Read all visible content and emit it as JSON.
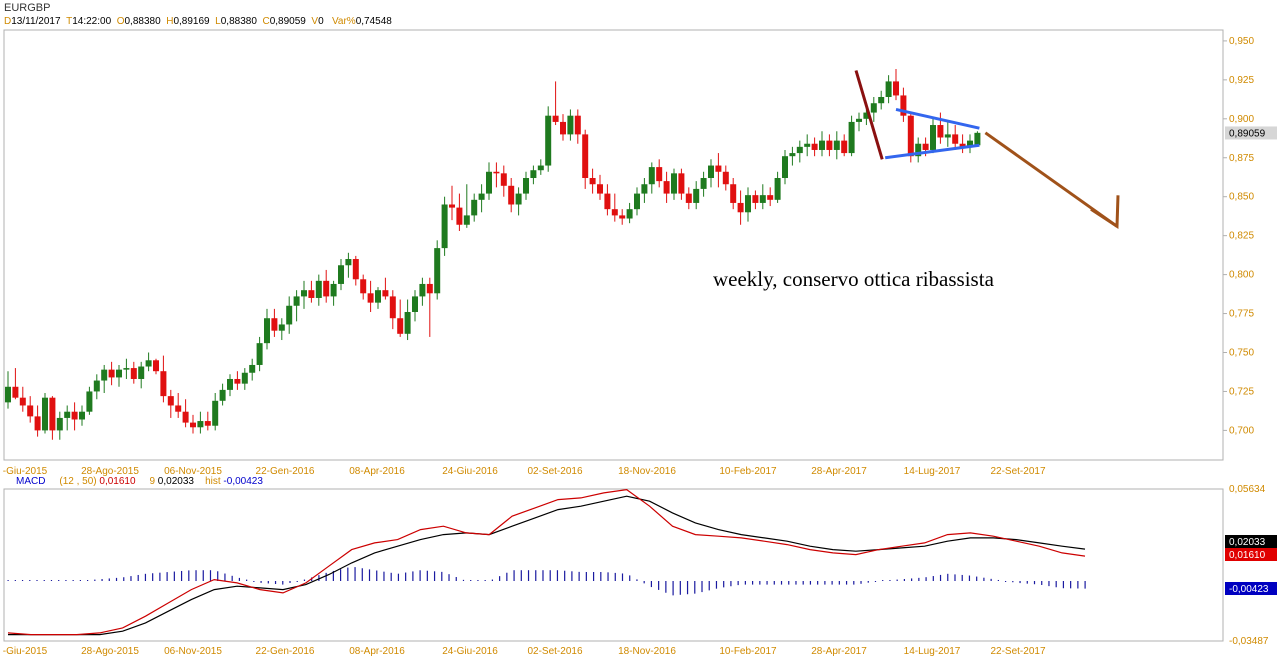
{
  "header": {
    "symbol": "EURGBP",
    "date_label": "D",
    "date": "13/11/2017",
    "time_label": "T",
    "time": "14:22:00",
    "open_label": "O",
    "open": "0,88380",
    "high_label": "H",
    "high": "0,89169",
    "low_label": "L",
    "low": "0,88380",
    "close_label": "C",
    "close": "0,89059",
    "volume_label": "V",
    "volume": "0",
    "varpct_label": "Var%",
    "varpct": "0,74548"
  },
  "macd_header": {
    "name": "MACD",
    "params": "(12 , 50)",
    "macd_value": "0,01610",
    "signal_label": "9",
    "signal_value": "0,02033",
    "hist_label": "hist",
    "hist_value": "-0,00423"
  },
  "annotation": "weekly, conservo ottica ribassista",
  "colors": {
    "bull": "#1f7a1f",
    "bear": "#e01010",
    "axis_text": "#d08a00",
    "macd_line": "#cc0000",
    "signal_line": "#000000",
    "histogram": "#1a1aa0",
    "triangle": "#3366ee",
    "arrow_dark": "#8a1010",
    "arrow_brown": "#a0521a"
  },
  "chart_data": [
    {
      "type": "candlestick",
      "title": "EURGBP",
      "y_ticks": [
        "0,950",
        "0,925",
        "0,900",
        "0,875",
        "0,850",
        "0,825",
        "0,800",
        "0,775",
        "0,750",
        "0,725",
        "0,700"
      ],
      "ylim": [
        0.681,
        0.957
      ],
      "last_price_label": "0,89059",
      "x_tick_labels": [
        "-Giu-2015",
        "28-Ago-2015",
        "06-Nov-2015",
        "22-Gen-2016",
        "08-Apr-2016",
        "24-Giu-2016",
        "02-Set-2016",
        "18-Nov-2016",
        "10-Feb-2017",
        "28-Apr-2017",
        "14-Lug-2017",
        "22-Set-2017"
      ],
      "ohlc": [
        [
          0.718,
          0.738,
          0.714,
          0.728
        ],
        [
          0.728,
          0.74,
          0.72,
          0.721
        ],
        [
          0.721,
          0.728,
          0.712,
          0.716
        ],
        [
          0.716,
          0.722,
          0.705,
          0.709
        ],
        [
          0.709,
          0.716,
          0.696,
          0.7
        ],
        [
          0.7,
          0.724,
          0.698,
          0.721
        ],
        [
          0.721,
          0.722,
          0.694,
          0.7
        ],
        [
          0.7,
          0.712,
          0.694,
          0.708
        ],
        [
          0.708,
          0.716,
          0.7,
          0.712
        ],
        [
          0.712,
          0.718,
          0.7,
          0.707
        ],
        [
          0.707,
          0.716,
          0.703,
          0.712
        ],
        [
          0.712,
          0.728,
          0.71,
          0.725
        ],
        [
          0.725,
          0.736,
          0.72,
          0.732
        ],
        [
          0.732,
          0.742,
          0.724,
          0.739
        ],
        [
          0.739,
          0.744,
          0.729,
          0.734
        ],
        [
          0.734,
          0.742,
          0.728,
          0.739
        ],
        [
          0.739,
          0.746,
          0.733,
          0.74
        ],
        [
          0.74,
          0.744,
          0.73,
          0.733
        ],
        [
          0.733,
          0.744,
          0.727,
          0.741
        ],
        [
          0.741,
          0.75,
          0.738,
          0.745
        ],
        [
          0.745,
          0.746,
          0.736,
          0.738
        ],
        [
          0.738,
          0.748,
          0.718,
          0.722
        ],
        [
          0.722,
          0.726,
          0.708,
          0.716
        ],
        [
          0.716,
          0.724,
          0.708,
          0.712
        ],
        [
          0.712,
          0.72,
          0.702,
          0.705
        ],
        [
          0.705,
          0.71,
          0.698,
          0.702
        ],
        [
          0.702,
          0.712,
          0.698,
          0.706
        ],
        [
          0.706,
          0.712,
          0.7,
          0.703
        ],
        [
          0.703,
          0.724,
          0.7,
          0.719
        ],
        [
          0.719,
          0.73,
          0.716,
          0.726
        ],
        [
          0.726,
          0.736,
          0.722,
          0.733
        ],
        [
          0.733,
          0.738,
          0.726,
          0.73
        ],
        [
          0.73,
          0.74,
          0.726,
          0.737
        ],
        [
          0.737,
          0.746,
          0.732,
          0.742
        ],
        [
          0.742,
          0.76,
          0.738,
          0.756
        ],
        [
          0.756,
          0.778,
          0.752,
          0.772
        ],
        [
          0.772,
          0.778,
          0.76,
          0.764
        ],
        [
          0.764,
          0.772,
          0.758,
          0.768
        ],
        [
          0.768,
          0.786,
          0.762,
          0.78
        ],
        [
          0.78,
          0.79,
          0.77,
          0.786
        ],
        [
          0.786,
          0.796,
          0.778,
          0.79
        ],
        [
          0.79,
          0.796,
          0.782,
          0.785
        ],
        [
          0.785,
          0.8,
          0.78,
          0.796
        ],
        [
          0.796,
          0.803,
          0.782,
          0.786
        ],
        [
          0.786,
          0.796,
          0.78,
          0.794
        ],
        [
          0.794,
          0.81,
          0.79,
          0.806
        ],
        [
          0.806,
          0.814,
          0.798,
          0.81
        ],
        [
          0.81,
          0.812,
          0.793,
          0.797
        ],
        [
          0.797,
          0.8,
          0.784,
          0.788
        ],
        [
          0.788,
          0.796,
          0.776,
          0.782
        ],
        [
          0.782,
          0.792,
          0.778,
          0.79
        ],
        [
          0.79,
          0.798,
          0.784,
          0.786
        ],
        [
          0.786,
          0.79,
          0.765,
          0.772
        ],
        [
          0.772,
          0.784,
          0.76,
          0.762
        ],
        [
          0.762,
          0.784,
          0.758,
          0.776
        ],
        [
          0.776,
          0.79,
          0.77,
          0.786
        ],
        [
          0.786,
          0.798,
          0.78,
          0.794
        ],
        [
          0.794,
          0.798,
          0.76,
          0.788
        ],
        [
          0.788,
          0.822,
          0.784,
          0.817
        ],
        [
          0.817,
          0.85,
          0.812,
          0.845
        ],
        [
          0.845,
          0.857,
          0.835,
          0.843
        ],
        [
          0.843,
          0.852,
          0.828,
          0.832
        ],
        [
          0.832,
          0.858,
          0.83,
          0.838
        ],
        [
          0.838,
          0.852,
          0.834,
          0.848
        ],
        [
          0.848,
          0.858,
          0.84,
          0.852
        ],
        [
          0.852,
          0.872,
          0.848,
          0.866
        ],
        [
          0.866,
          0.872,
          0.856,
          0.865
        ],
        [
          0.865,
          0.87,
          0.85,
          0.857
        ],
        [
          0.857,
          0.862,
          0.84,
          0.845
        ],
        [
          0.845,
          0.856,
          0.838,
          0.852
        ],
        [
          0.852,
          0.866,
          0.848,
          0.862
        ],
        [
          0.862,
          0.87,
          0.858,
          0.867
        ],
        [
          0.867,
          0.874,
          0.864,
          0.87
        ],
        [
          0.87,
          0.908,
          0.866,
          0.902
        ],
        [
          0.902,
          0.924,
          0.896,
          0.898
        ],
        [
          0.898,
          0.903,
          0.886,
          0.89
        ],
        [
          0.89,
          0.906,
          0.886,
          0.902
        ],
        [
          0.902,
          0.906,
          0.884,
          0.89
        ],
        [
          0.89,
          0.893,
          0.855,
          0.862
        ],
        [
          0.862,
          0.868,
          0.852,
          0.858
        ],
        [
          0.858,
          0.864,
          0.848,
          0.852
        ],
        [
          0.852,
          0.858,
          0.838,
          0.842
        ],
        [
          0.842,
          0.852,
          0.834,
          0.838
        ],
        [
          0.838,
          0.842,
          0.832,
          0.836
        ],
        [
          0.836,
          0.846,
          0.833,
          0.842
        ],
        [
          0.842,
          0.856,
          0.838,
          0.852
        ],
        [
          0.852,
          0.862,
          0.846,
          0.858
        ],
        [
          0.858,
          0.872,
          0.852,
          0.869
        ],
        [
          0.869,
          0.874,
          0.856,
          0.86
        ],
        [
          0.86,
          0.866,
          0.846,
          0.852
        ],
        [
          0.852,
          0.868,
          0.848,
          0.865
        ],
        [
          0.865,
          0.868,
          0.848,
          0.852
        ],
        [
          0.852,
          0.856,
          0.842,
          0.846
        ],
        [
          0.846,
          0.86,
          0.842,
          0.855
        ],
        [
          0.855,
          0.866,
          0.85,
          0.862
        ],
        [
          0.862,
          0.874,
          0.856,
          0.87
        ],
        [
          0.87,
          0.878,
          0.856,
          0.866
        ],
        [
          0.866,
          0.87,
          0.854,
          0.858
        ],
        [
          0.858,
          0.862,
          0.842,
          0.846
        ],
        [
          0.846,
          0.854,
          0.832,
          0.84
        ],
        [
          0.84,
          0.856,
          0.834,
          0.851
        ],
        [
          0.851,
          0.854,
          0.842,
          0.846
        ],
        [
          0.846,
          0.858,
          0.842,
          0.851
        ],
        [
          0.851,
          0.856,
          0.844,
          0.848
        ],
        [
          0.848,
          0.866,
          0.846,
          0.862
        ],
        [
          0.862,
          0.88,
          0.858,
          0.876
        ],
        [
          0.876,
          0.882,
          0.87,
          0.878
        ],
        [
          0.878,
          0.886,
          0.872,
          0.882
        ],
        [
          0.882,
          0.89,
          0.876,
          0.884
        ],
        [
          0.884,
          0.888,
          0.876,
          0.88
        ],
        [
          0.88,
          0.892,
          0.876,
          0.886
        ],
        [
          0.886,
          0.89,
          0.876,
          0.88
        ],
        [
          0.88,
          0.892,
          0.874,
          0.886
        ],
        [
          0.886,
          0.89,
          0.876,
          0.878
        ],
        [
          0.878,
          0.902,
          0.876,
          0.898
        ],
        [
          0.898,
          0.904,
          0.892,
          0.9
        ],
        [
          0.9,
          0.908,
          0.896,
          0.904
        ],
        [
          0.904,
          0.914,
          0.898,
          0.91
        ],
        [
          0.91,
          0.918,
          0.906,
          0.914
        ],
        [
          0.914,
          0.928,
          0.91,
          0.924
        ],
        [
          0.924,
          0.932,
          0.912,
          0.915
        ],
        [
          0.915,
          0.92,
          0.898,
          0.902
        ],
        [
          0.902,
          0.904,
          0.872,
          0.876
        ],
        [
          0.876,
          0.888,
          0.872,
          0.884
        ],
        [
          0.884,
          0.888,
          0.876,
          0.88
        ],
        [
          0.88,
          0.9,
          0.878,
          0.896
        ],
        [
          0.896,
          0.904,
          0.884,
          0.888
        ],
        [
          0.888,
          0.898,
          0.882,
          0.89
        ],
        [
          0.89,
          0.896,
          0.88,
          0.884
        ],
        [
          0.884,
          0.89,
          0.878,
          0.882
        ],
        [
          0.882,
          0.89,
          0.878,
          0.886
        ],
        [
          0.883,
          0.892,
          0.883,
          0.891
        ]
      ],
      "triangle": {
        "upper": [
          [
            0.906,
            124
          ],
          [
            0.894,
            138
          ]
        ],
        "lower": [
          [
            0.876,
            121
          ],
          [
            0.883,
            138
          ]
        ]
      },
      "annotation": "weekly, conservo ottica ribassista"
    },
    {
      "type": "macd",
      "title": "MACD",
      "y_ticks": [
        "0,05634",
        "-0,03487"
      ],
      "ylim": [
        -0.03487,
        0.05634
      ],
      "macd_label": "0,01610",
      "signal_label": "0,02033",
      "hist_label": "-0,00423",
      "macd": [
        -0.03,
        -0.031,
        -0.031,
        -0.031,
        -0.03,
        -0.027,
        -0.02,
        -0.012,
        -0.004,
        0.002,
        0.0,
        -0.004,
        -0.006,
        0.0,
        0.01,
        0.02,
        0.024,
        0.026,
        0.032,
        0.034,
        0.03,
        0.029,
        0.04,
        0.045,
        0.05,
        0.051,
        0.054,
        0.056,
        0.046,
        0.034,
        0.029,
        0.028,
        0.027,
        0.025,
        0.023,
        0.02,
        0.018,
        0.017,
        0.02,
        0.022,
        0.024,
        0.029,
        0.03,
        0.028,
        0.025,
        0.022,
        0.018,
        0.0161
      ],
      "signal": [
        -0.031,
        -0.031,
        -0.031,
        -0.031,
        -0.031,
        -0.029,
        -0.024,
        -0.017,
        -0.01,
        -0.004,
        -0.002,
        -0.003,
        -0.004,
        -0.001,
        0.005,
        0.012,
        0.018,
        0.022,
        0.026,
        0.029,
        0.03,
        0.029,
        0.034,
        0.039,
        0.044,
        0.046,
        0.049,
        0.052,
        0.049,
        0.042,
        0.036,
        0.032,
        0.029,
        0.027,
        0.025,
        0.022,
        0.02,
        0.019,
        0.02,
        0.021,
        0.022,
        0.025,
        0.027,
        0.027,
        0.026,
        0.024,
        0.022,
        0.0203
      ],
      "histogram": [
        0.0,
        0.0,
        0.0,
        0.0,
        0.001,
        0.002,
        0.004,
        0.005,
        0.006,
        0.006,
        0.002,
        -0.001,
        -0.002,
        0.001,
        0.005,
        0.008,
        0.006,
        0.004,
        0.006,
        0.005,
        0.0,
        0.0,
        0.006,
        0.006,
        0.006,
        0.005,
        0.005,
        0.004,
        -0.003,
        -0.008,
        -0.007,
        -0.004,
        -0.002,
        -0.002,
        -0.002,
        -0.002,
        -0.002,
        -0.002,
        0.0,
        0.001,
        0.002,
        0.004,
        0.003,
        0.001,
        -0.001,
        -0.002,
        -0.004,
        -0.00423
      ]
    }
  ]
}
